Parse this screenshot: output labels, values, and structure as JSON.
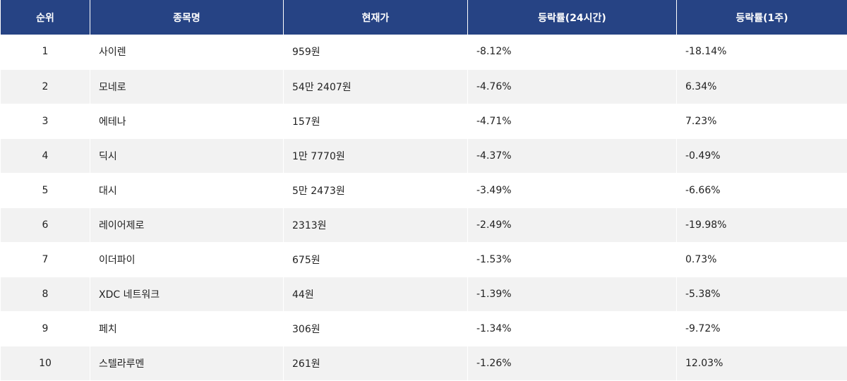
{
  "table": {
    "headers": [
      "순위",
      "종목명",
      "현재가",
      "등락률(24시간)",
      "등락률(1주)"
    ],
    "rows": [
      {
        "rank": "1",
        "name": "사이렌",
        "price": "959원",
        "change_24h": "-8.12%",
        "change_1w": "-18.14%"
      },
      {
        "rank": "2",
        "name": "모네로",
        "price": "54만 2407원",
        "change_24h": "-4.76%",
        "change_1w": "6.34%"
      },
      {
        "rank": "3",
        "name": "에테나",
        "price": "157원",
        "change_24h": "-4.71%",
        "change_1w": "7.23%"
      },
      {
        "rank": "4",
        "name": "딕시",
        "price": "1만 7770원",
        "change_24h": "-4.37%",
        "change_1w": "-0.49%"
      },
      {
        "rank": "5",
        "name": "대시",
        "price": "5만 2473원",
        "change_24h": "-3.49%",
        "change_1w": "-6.66%"
      },
      {
        "rank": "6",
        "name": "레이어제로",
        "price": "2313원",
        "change_24h": "-2.49%",
        "change_1w": "-19.98%"
      },
      {
        "rank": "7",
        "name": "이더파이",
        "price": "675원",
        "change_24h": "-1.53%",
        "change_1w": "0.73%"
      },
      {
        "rank": "8",
        "name": "XDC 네트워크",
        "price": "44원",
        "change_24h": "-1.39%",
        "change_1w": "-5.38%"
      },
      {
        "rank": "9",
        "name": "페치",
        "price": "306원",
        "change_24h": "-1.34%",
        "change_1w": "-9.72%"
      },
      {
        "rank": "10",
        "name": "스텔라루멘",
        "price": "261원",
        "change_24h": "-1.26%",
        "change_1w": "12.03%"
      }
    ]
  },
  "colors": {
    "header_bg": "#264384",
    "alt_row_bg": "#f2f2f2"
  }
}
